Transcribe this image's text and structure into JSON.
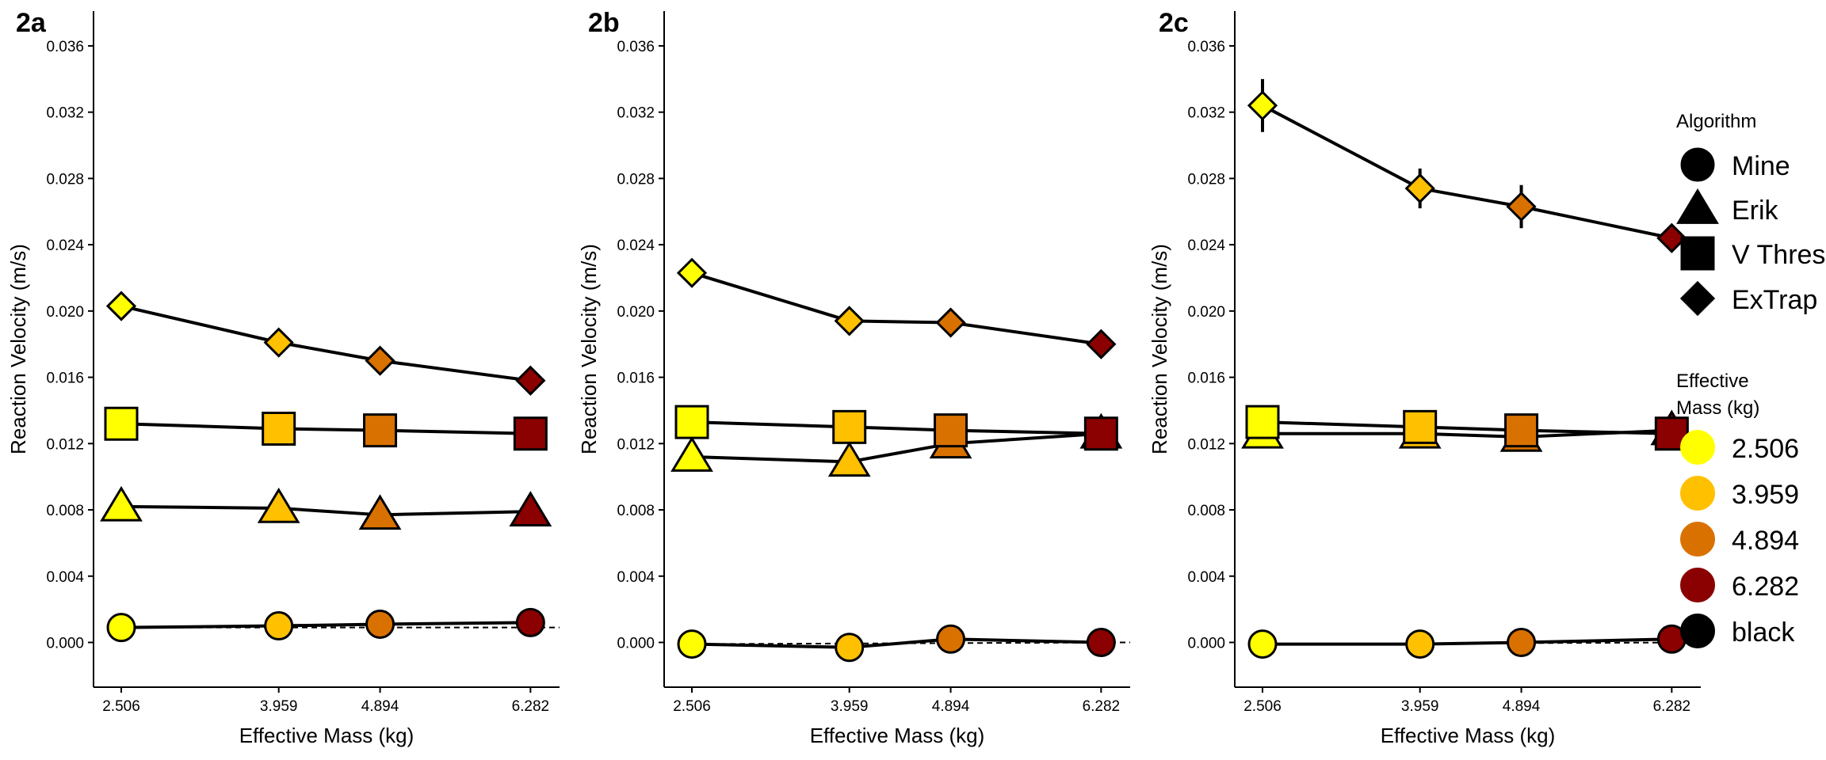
{
  "chart_data": [
    {
      "type": "line",
      "tag": "2a",
      "xlabel": "Effective Mass (kg)",
      "ylabel": "Reaction Velocity (m/s)",
      "x": [
        2.506,
        3.959,
        4.894,
        6.282
      ],
      "x_ticks": [
        "2.506",
        "3.959",
        "4.894",
        "6.282"
      ],
      "y_ticks": [
        "0.000",
        "0.004",
        "0.008",
        "0.012",
        "0.016",
        "0.020",
        "0.024",
        "0.028",
        "0.032",
        "0.036"
      ],
      "xlim": [
        2.25,
        6.55
      ],
      "ylim": [
        -0.0027,
        0.0381
      ],
      "grid": false,
      "series": [
        {
          "name": "Mine",
          "shape": "circle",
          "values": [
            0.0009,
            0.001,
            0.0011,
            0.0012
          ],
          "errors": [
            0,
            0,
            0,
            0
          ],
          "fit": [
            0.0009,
            0.0009
          ]
        },
        {
          "name": "Erik",
          "shape": "triangle",
          "values": [
            0.0082,
            0.0081,
            0.0077,
            0.0079
          ],
          "errors": [
            0,
            0,
            0,
            0
          ]
        },
        {
          "name": "V Threshold",
          "shape": "square",
          "values": [
            0.0132,
            0.0129,
            0.0128,
            0.0126
          ],
          "errors": [
            0,
            0,
            0,
            0
          ]
        },
        {
          "name": "ExTrap",
          "shape": "diamond",
          "values": [
            0.0203,
            0.0181,
            0.017,
            0.0158
          ],
          "errors": [
            0,
            0,
            0,
            0
          ]
        }
      ]
    },
    {
      "type": "line",
      "tag": "2b",
      "xlabel": "Effective Mass (kg)",
      "ylabel": "Reaction Velocity (m/s)",
      "x": [
        2.506,
        3.959,
        4.894,
        6.282
      ],
      "x_ticks": [
        "2.506",
        "3.959",
        "4.894",
        "6.282"
      ],
      "y_ticks": [
        "0.000",
        "0.004",
        "0.008",
        "0.012",
        "0.016",
        "0.020",
        "0.024",
        "0.028",
        "0.032",
        "0.036"
      ],
      "xlim": [
        2.25,
        6.55
      ],
      "ylim": [
        -0.0027,
        0.0381
      ],
      "grid": false,
      "series": [
        {
          "name": "Mine",
          "shape": "circle",
          "values": [
            -0.0001,
            -0.0003,
            0.0002,
            0.0
          ],
          "errors": [
            0,
            0,
            0,
            0
          ],
          "fit": [
            -0.0001,
            0.0
          ]
        },
        {
          "name": "Erik",
          "shape": "triangle",
          "values": [
            0.0112,
            0.0109,
            0.012,
            0.0126
          ],
          "errors": [
            0,
            0,
            0,
            0
          ]
        },
        {
          "name": "V Threshold",
          "shape": "square",
          "values": [
            0.0133,
            0.013,
            0.0128,
            0.0126
          ],
          "errors": [
            0,
            0,
            0,
            0
          ]
        },
        {
          "name": "ExTrap",
          "shape": "diamond",
          "values": [
            0.0223,
            0.0194,
            0.0193,
            0.018
          ],
          "errors": [
            0,
            0,
            0,
            0
          ]
        }
      ]
    },
    {
      "type": "line",
      "tag": "2c",
      "xlabel": "Effective Mass (kg)",
      "ylabel": "Reaction Velocity (m/s)",
      "x": [
        2.506,
        3.959,
        4.894,
        6.282
      ],
      "x_ticks": [
        "2.506",
        "3.959",
        "4.894",
        "6.282"
      ],
      "y_ticks": [
        "0.000",
        "0.004",
        "0.008",
        "0.012",
        "0.016",
        "0.020",
        "0.024",
        "0.028",
        "0.032",
        "0.036"
      ],
      "xlim": [
        2.25,
        6.55
      ],
      "ylim": [
        -0.0027,
        0.0381
      ],
      "grid": false,
      "series": [
        {
          "name": "Mine",
          "shape": "circle",
          "values": [
            -0.0001,
            -0.0001,
            0.0,
            0.0002
          ],
          "errors": [
            0,
            0,
            0,
            0
          ],
          "fit": [
            -0.0001,
            0.0
          ]
        },
        {
          "name": "Erik",
          "shape": "triangle",
          "values": [
            0.0126,
            0.0126,
            0.0124,
            0.0128
          ],
          "errors": [
            0,
            0,
            0,
            0
          ]
        },
        {
          "name": "V Threshold",
          "shape": "square",
          "values": [
            0.0133,
            0.013,
            0.0128,
            0.0126
          ],
          "errors": [
            0,
            0,
            0,
            0
          ]
        },
        {
          "name": "ExTrap",
          "shape": "diamond",
          "values": [
            0.0324,
            0.0274,
            0.0263,
            0.0244
          ],
          "errors": [
            0.0016,
            0.0012,
            0.0013,
            0
          ]
        }
      ]
    }
  ],
  "legend": {
    "algorithm_title": "Algorithm",
    "algorithm_items": [
      {
        "label": "Mine",
        "shape": "circle"
      },
      {
        "label": "Erik",
        "shape": "triangle"
      },
      {
        "label": "V Threshold",
        "shape": "square"
      },
      {
        "label": "ExTrap",
        "shape": "diamond"
      }
    ],
    "mass_title_line1": "Effective",
    "mass_title_line2": "Mass (kg)",
    "mass_items": [
      {
        "label": "2.506",
        "color": "#FFFF00"
      },
      {
        "label": "3.959",
        "color": "#FFC000"
      },
      {
        "label": "4.894",
        "color": "#D97100"
      },
      {
        "label": "6.282",
        "color": "#8B0000"
      },
      {
        "label": "black",
        "color": "#000000"
      }
    ]
  },
  "colors": {
    "mass_2_506": "#FFFF00",
    "mass_3_959": "#FFC000",
    "mass_4_894": "#D97100",
    "mass_6_282": "#8B0000",
    "stroke": "#000000"
  }
}
